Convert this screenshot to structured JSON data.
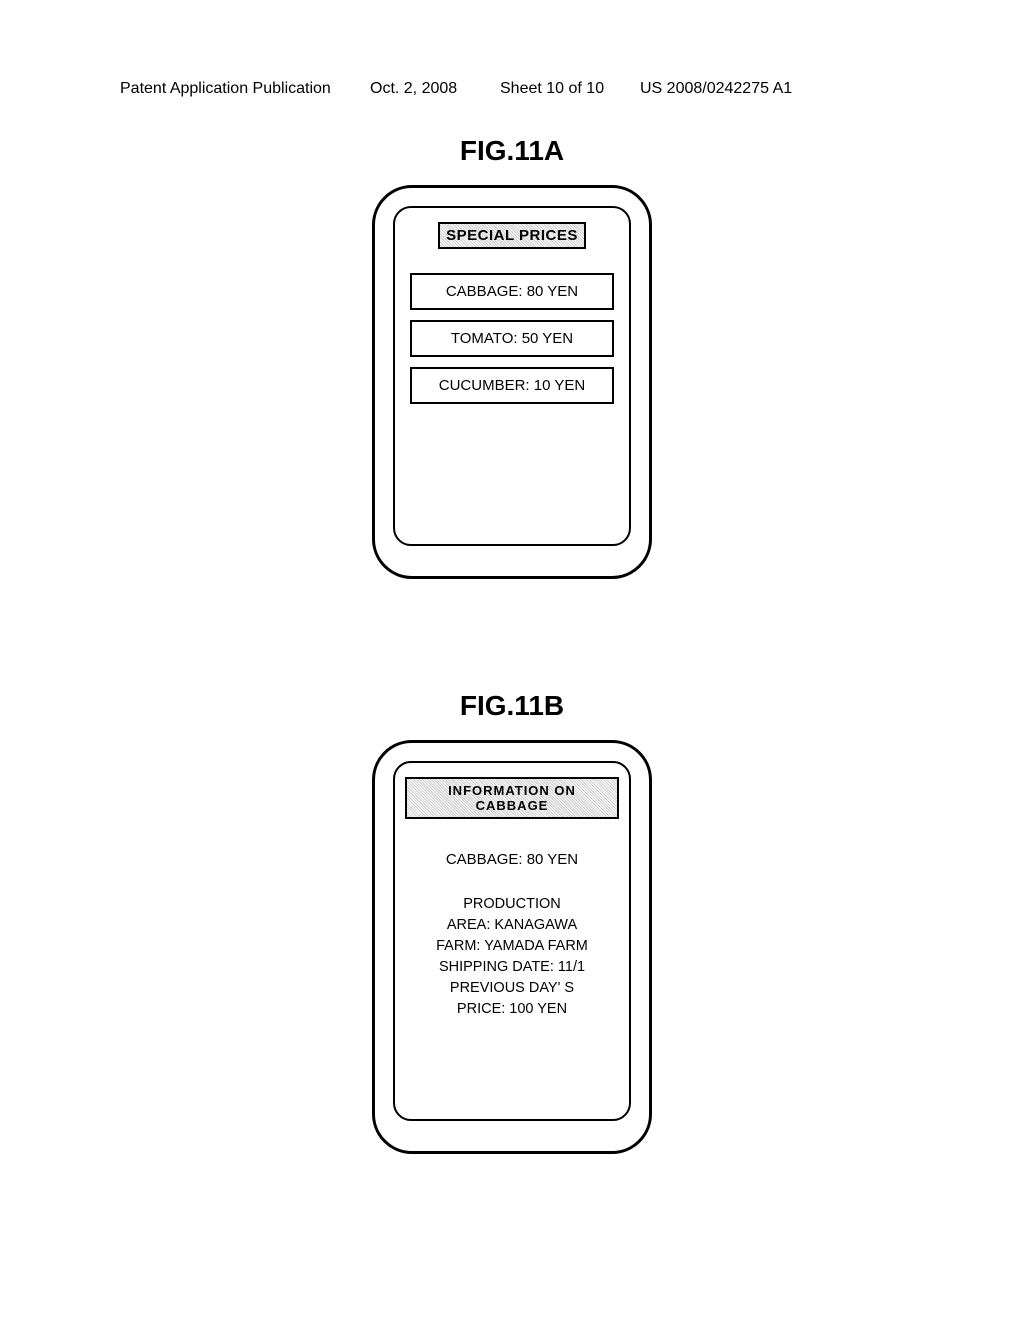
{
  "header": {
    "left": "Patent Application Publication",
    "date": "Oct. 2, 2008",
    "sheet": "Sheet 10 of 10",
    "pubno": "US 2008/0242275 A1"
  },
  "figA": {
    "label": "FIG.11A",
    "title": "SPECIAL PRICES",
    "items": [
      "CABBAGE: 80 YEN",
      "TOMATO: 50 YEN",
      "CUCUMBER: 10 YEN"
    ]
  },
  "figB": {
    "label": "FIG.11B",
    "title": "INFORMATION ON CABBAGE",
    "price_line": "CABBAGE: 80 YEN",
    "info_lines": [
      "PRODUCTION",
      "AREA: KANAGAWA",
      "FARM: YAMADA FARM",
      "SHIPPING DATE: 11/1",
      "PREVIOUS DAY' S",
      "PRICE: 100 YEN"
    ]
  },
  "colors": {
    "text": "#000000",
    "bg": "#ffffff",
    "hatch": "#cccccc"
  }
}
